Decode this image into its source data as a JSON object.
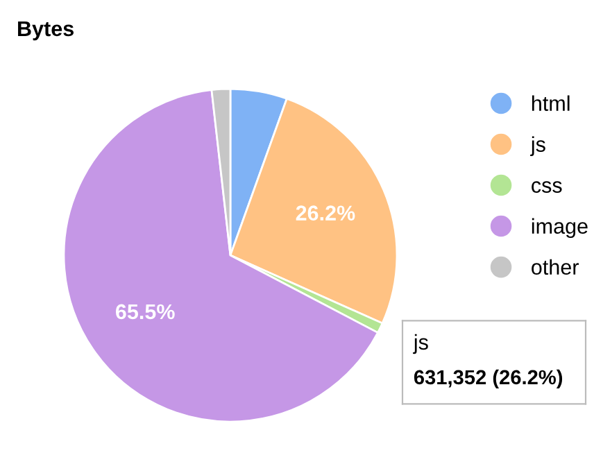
{
  "chart_data": {
    "type": "pie",
    "title": "Bytes",
    "categories": [
      "html",
      "js",
      "css",
      "image",
      "other"
    ],
    "values": [
      5.5,
      26.2,
      1.0,
      65.5,
      1.8
    ],
    "colors": [
      "#7fb2f5",
      "#ffc283",
      "#b3e594",
      "#c597e6",
      "#c6c6c6"
    ],
    "value_labels": [
      null,
      "26.2%",
      null,
      "65.5%",
      null
    ],
    "legend": "right",
    "annotations": [
      "js",
      "631,352 (26.2%)"
    ]
  }
}
